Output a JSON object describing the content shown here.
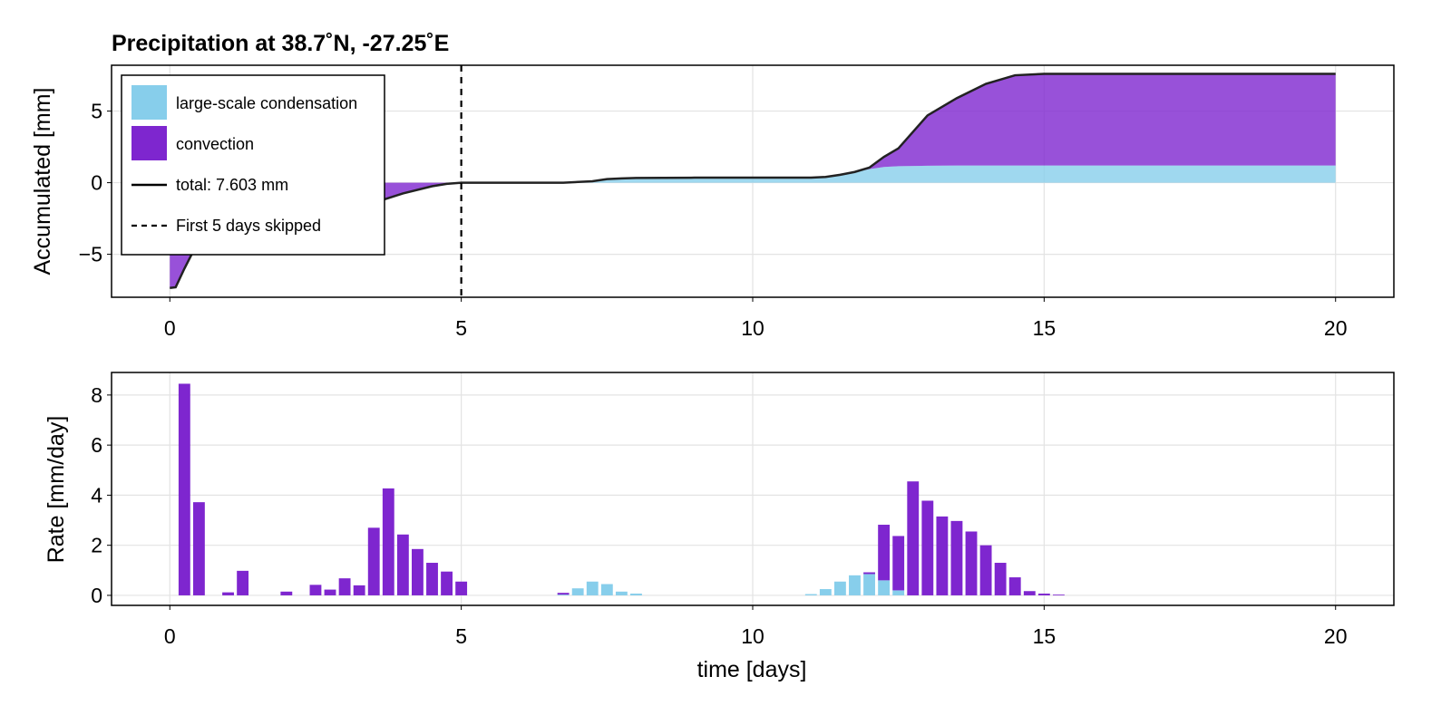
{
  "chart_data": [
    {
      "type": "area",
      "title": "Precipitation at 38.7˚N, -27.25˚E",
      "xlabel": "",
      "ylabel": "Accumulated [mm]",
      "xlim": [
        -1,
        21
      ],
      "ylim": [
        -8,
        8.2
      ],
      "xticks": [
        0,
        5,
        10,
        15,
        20
      ],
      "yticks": [
        -5,
        0,
        5
      ],
      "grid": true,
      "vline_x": 5,
      "legend": {
        "placement": "top-left",
        "entries": [
          {
            "label": "large-scale condensation",
            "kind": "patch",
            "color": "#87ceeb"
          },
          {
            "label": "convection",
            "kind": "patch",
            "color": "#7e26cf"
          },
          {
            "label": "total: 7.603 mm",
            "kind": "line",
            "color": "#000000"
          },
          {
            "label": "First 5 days skipped",
            "kind": "dashed",
            "color": "#000000"
          }
        ]
      },
      "x": [
        0,
        0.1,
        0.25,
        0.5,
        1,
        1.5,
        2,
        2.5,
        3,
        3.5,
        4,
        4.5,
        4.75,
        5,
        6,
        6.75,
        7.25,
        7.5,
        7.75,
        8,
        9,
        10,
        11,
        11.25,
        11.5,
        11.75,
        12,
        12.25,
        12.5,
        13,
        13.5,
        14,
        14.5,
        15,
        20
      ],
      "series": [
        {
          "name": "large-scale condensation",
          "color": "#87ceeb",
          "values": [
            0,
            0,
            0,
            0,
            0,
            0,
            0,
            0,
            0,
            0,
            0,
            0,
            0,
            0,
            0,
            0,
            0.1,
            0.25,
            0.3,
            0.33,
            0.35,
            0.35,
            0.35,
            0.4,
            0.55,
            0.75,
            0.95,
            1.1,
            1.15,
            1.18,
            1.2,
            1.2,
            1.2,
            1.2,
            1.2
          ]
        },
        {
          "name": "convection",
          "color": "#7e26cf",
          "values": [
            -7.35,
            -7.3,
            -6.0,
            -4.0,
            -3.2,
            -2.8,
            -2.5,
            -2.2,
            -1.9,
            -1.4,
            -0.75,
            -0.25,
            -0.08,
            0,
            0,
            0,
            0,
            0,
            0,
            0,
            0,
            0,
            0,
            0,
            0,
            0,
            0.1,
            0.7,
            1.25,
            3.5,
            4.7,
            5.7,
            6.3,
            6.4,
            6.4
          ]
        }
      ],
      "total": [
        -7.35,
        -7.3,
        -6.0,
        -4.0,
        -3.2,
        -2.8,
        -2.5,
        -2.2,
        -1.9,
        -1.4,
        -0.75,
        -0.25,
        -0.08,
        0,
        0,
        0,
        0.1,
        0.25,
        0.3,
        0.33,
        0.35,
        0.35,
        0.35,
        0.4,
        0.55,
        0.75,
        1.05,
        1.8,
        2.4,
        4.7,
        5.9,
        6.9,
        7.5,
        7.6,
        7.6
      ]
    },
    {
      "type": "bar",
      "stacked": true,
      "xlabel": "time [days]",
      "ylabel": "Rate [mm/day]",
      "xlim": [
        -1,
        21
      ],
      "ylim": [
        -0.4,
        8.9
      ],
      "xticks": [
        0,
        5,
        10,
        15,
        20
      ],
      "yticks": [
        0,
        2,
        4,
        6,
        8
      ],
      "grid": true,
      "bar_width": 0.2,
      "x": [
        0.25,
        0.5,
        1,
        1.25,
        1.75,
        2,
        2.5,
        2.75,
        3,
        3.25,
        3.5,
        3.75,
        4,
        4.25,
        4.5,
        4.75,
        5,
        6.75,
        7,
        7.25,
        7.5,
        7.75,
        8,
        11,
        11.25,
        11.5,
        11.75,
        12,
        12.25,
        12.5,
        12.75,
        13,
        13.25,
        13.5,
        13.75,
        14,
        14.25,
        14.5,
        14.75,
        15,
        15.25
      ],
      "series": [
        {
          "name": "large-scale condensation",
          "color": "#87ceeb",
          "values": [
            0,
            0,
            0,
            0,
            0,
            0,
            0,
            0,
            0,
            0,
            0,
            0,
            0,
            0,
            0,
            0,
            0,
            0.03,
            0.28,
            0.55,
            0.45,
            0.15,
            0.07,
            0.05,
            0.25,
            0.55,
            0.8,
            0.85,
            0.6,
            0.2,
            0,
            0,
            0,
            0,
            0,
            0,
            0,
            0,
            0,
            0,
            0
          ]
        },
        {
          "name": "convection",
          "color": "#7e26cf",
          "values": [
            8.45,
            3.72,
            0.12,
            0.98,
            0,
            0.15,
            0.42,
            0.23,
            0.68,
            0.4,
            2.7,
            4.27,
            2.43,
            1.85,
            1.3,
            0.95,
            0.55,
            0.07,
            0,
            0,
            0,
            0,
            0,
            0,
            0,
            0,
            0,
            0.07,
            2.22,
            2.17,
            4.55,
            3.78,
            3.15,
            2.97,
            2.55,
            2.0,
            1.3,
            0.72,
            0.17,
            0.07,
            0.03
          ]
        }
      ]
    }
  ]
}
